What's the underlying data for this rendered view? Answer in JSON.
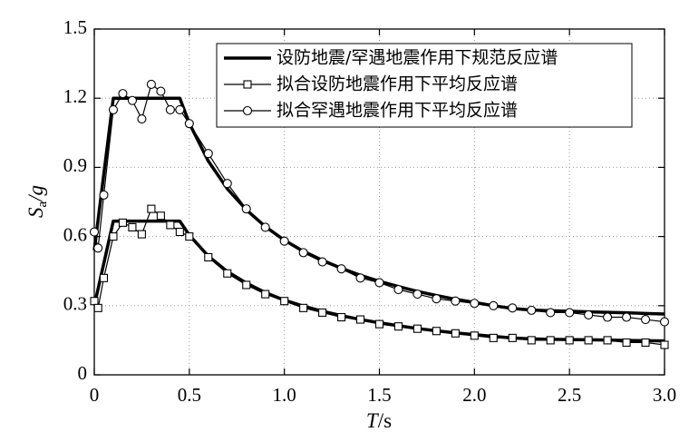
{
  "chart_data": {
    "type": "line",
    "xlabel": [
      "T",
      "/s"
    ],
    "ylabel": [
      "S",
      "a",
      "/g"
    ],
    "x": [
      0,
      0.02,
      0.05,
      0.1,
      0.15,
      0.2,
      0.25,
      0.3,
      0.35,
      0.4,
      0.45,
      0.5,
      0.6,
      0.7,
      0.8,
      0.9,
      1.0,
      1.1,
      1.2,
      1.3,
      1.4,
      1.5,
      1.6,
      1.7,
      1.8,
      1.9,
      2.0,
      2.1,
      2.2,
      2.3,
      2.4,
      2.5,
      2.6,
      2.7,
      2.8,
      2.9,
      3.0
    ],
    "series": [
      {
        "name": "设防地震/罕遇地震作用下规范反应谱",
        "color": "#000000",
        "width": 3.5,
        "marker": "none",
        "values": [
          0.54,
          0.672,
          0.87,
          1.2,
          1.2,
          1.2,
          1.2,
          1.2,
          1.2,
          1.2,
          1.2,
          1.091,
          0.927,
          0.807,
          0.716,
          0.643,
          0.584,
          0.536,
          0.497,
          0.462,
          0.432,
          0.406,
          0.383,
          0.362,
          0.344,
          0.328,
          0.314,
          0.3,
          0.288,
          0.281,
          0.278,
          0.276,
          0.273,
          0.271,
          0.269,
          0.266,
          0.264
        ]
      },
      {
        "color": "#000000",
        "width": 3.5,
        "marker": "none",
        "values": [
          0.3,
          0.373,
          0.483,
          0.667,
          0.667,
          0.667,
          0.667,
          0.667,
          0.667,
          0.667,
          0.667,
          0.606,
          0.515,
          0.448,
          0.398,
          0.357,
          0.324,
          0.298,
          0.276,
          0.257,
          0.24,
          0.226,
          0.213,
          0.201,
          0.191,
          0.182,
          0.174,
          0.167,
          0.16,
          0.156,
          0.154,
          0.153,
          0.152,
          0.151,
          0.149,
          0.148,
          0.147
        ]
      },
      {
        "name": "拟合设防地震作用下平均反应谱",
        "color": "#000000",
        "width": 1.2,
        "marker": "square",
        "values": [
          0.32,
          0.29,
          0.42,
          0.6,
          0.66,
          0.64,
          0.61,
          0.72,
          0.69,
          0.65,
          0.62,
          0.6,
          0.51,
          0.44,
          0.39,
          0.35,
          0.32,
          0.29,
          0.27,
          0.25,
          0.24,
          0.22,
          0.21,
          0.2,
          0.19,
          0.18,
          0.17,
          0.16,
          0.16,
          0.15,
          0.15,
          0.15,
          0.15,
          0.15,
          0.14,
          0.14,
          0.13
        ]
      },
      {
        "name": "拟合罕遇地震作用下平均反应谱",
        "color": "#000000",
        "width": 1.2,
        "marker": "circle",
        "values": [
          0.62,
          0.55,
          0.78,
          1.15,
          1.22,
          1.19,
          1.11,
          1.26,
          1.23,
          1.15,
          1.15,
          1.09,
          0.96,
          0.83,
          0.72,
          0.64,
          0.58,
          0.53,
          0.49,
          0.46,
          0.42,
          0.4,
          0.37,
          0.35,
          0.33,
          0.32,
          0.31,
          0.3,
          0.29,
          0.28,
          0.27,
          0.27,
          0.26,
          0.25,
          0.25,
          0.24,
          0.23
        ]
      }
    ],
    "xlim": [
      0,
      3.0
    ],
    "xticks": [
      0,
      0.5,
      {
        "value": 1.0,
        "label": "1.0"
      },
      1.5,
      {
        "value": 2.0,
        "label": "2.0"
      },
      2.5,
      {
        "value": 3.0,
        "label": "3.0"
      }
    ],
    "ylim": [
      0,
      1.5
    ],
    "yticks": [
      0,
      0.3,
      0.6,
      0.9,
      1.2,
      1.5
    ],
    "grid": true,
    "legend": "upper right"
  }
}
